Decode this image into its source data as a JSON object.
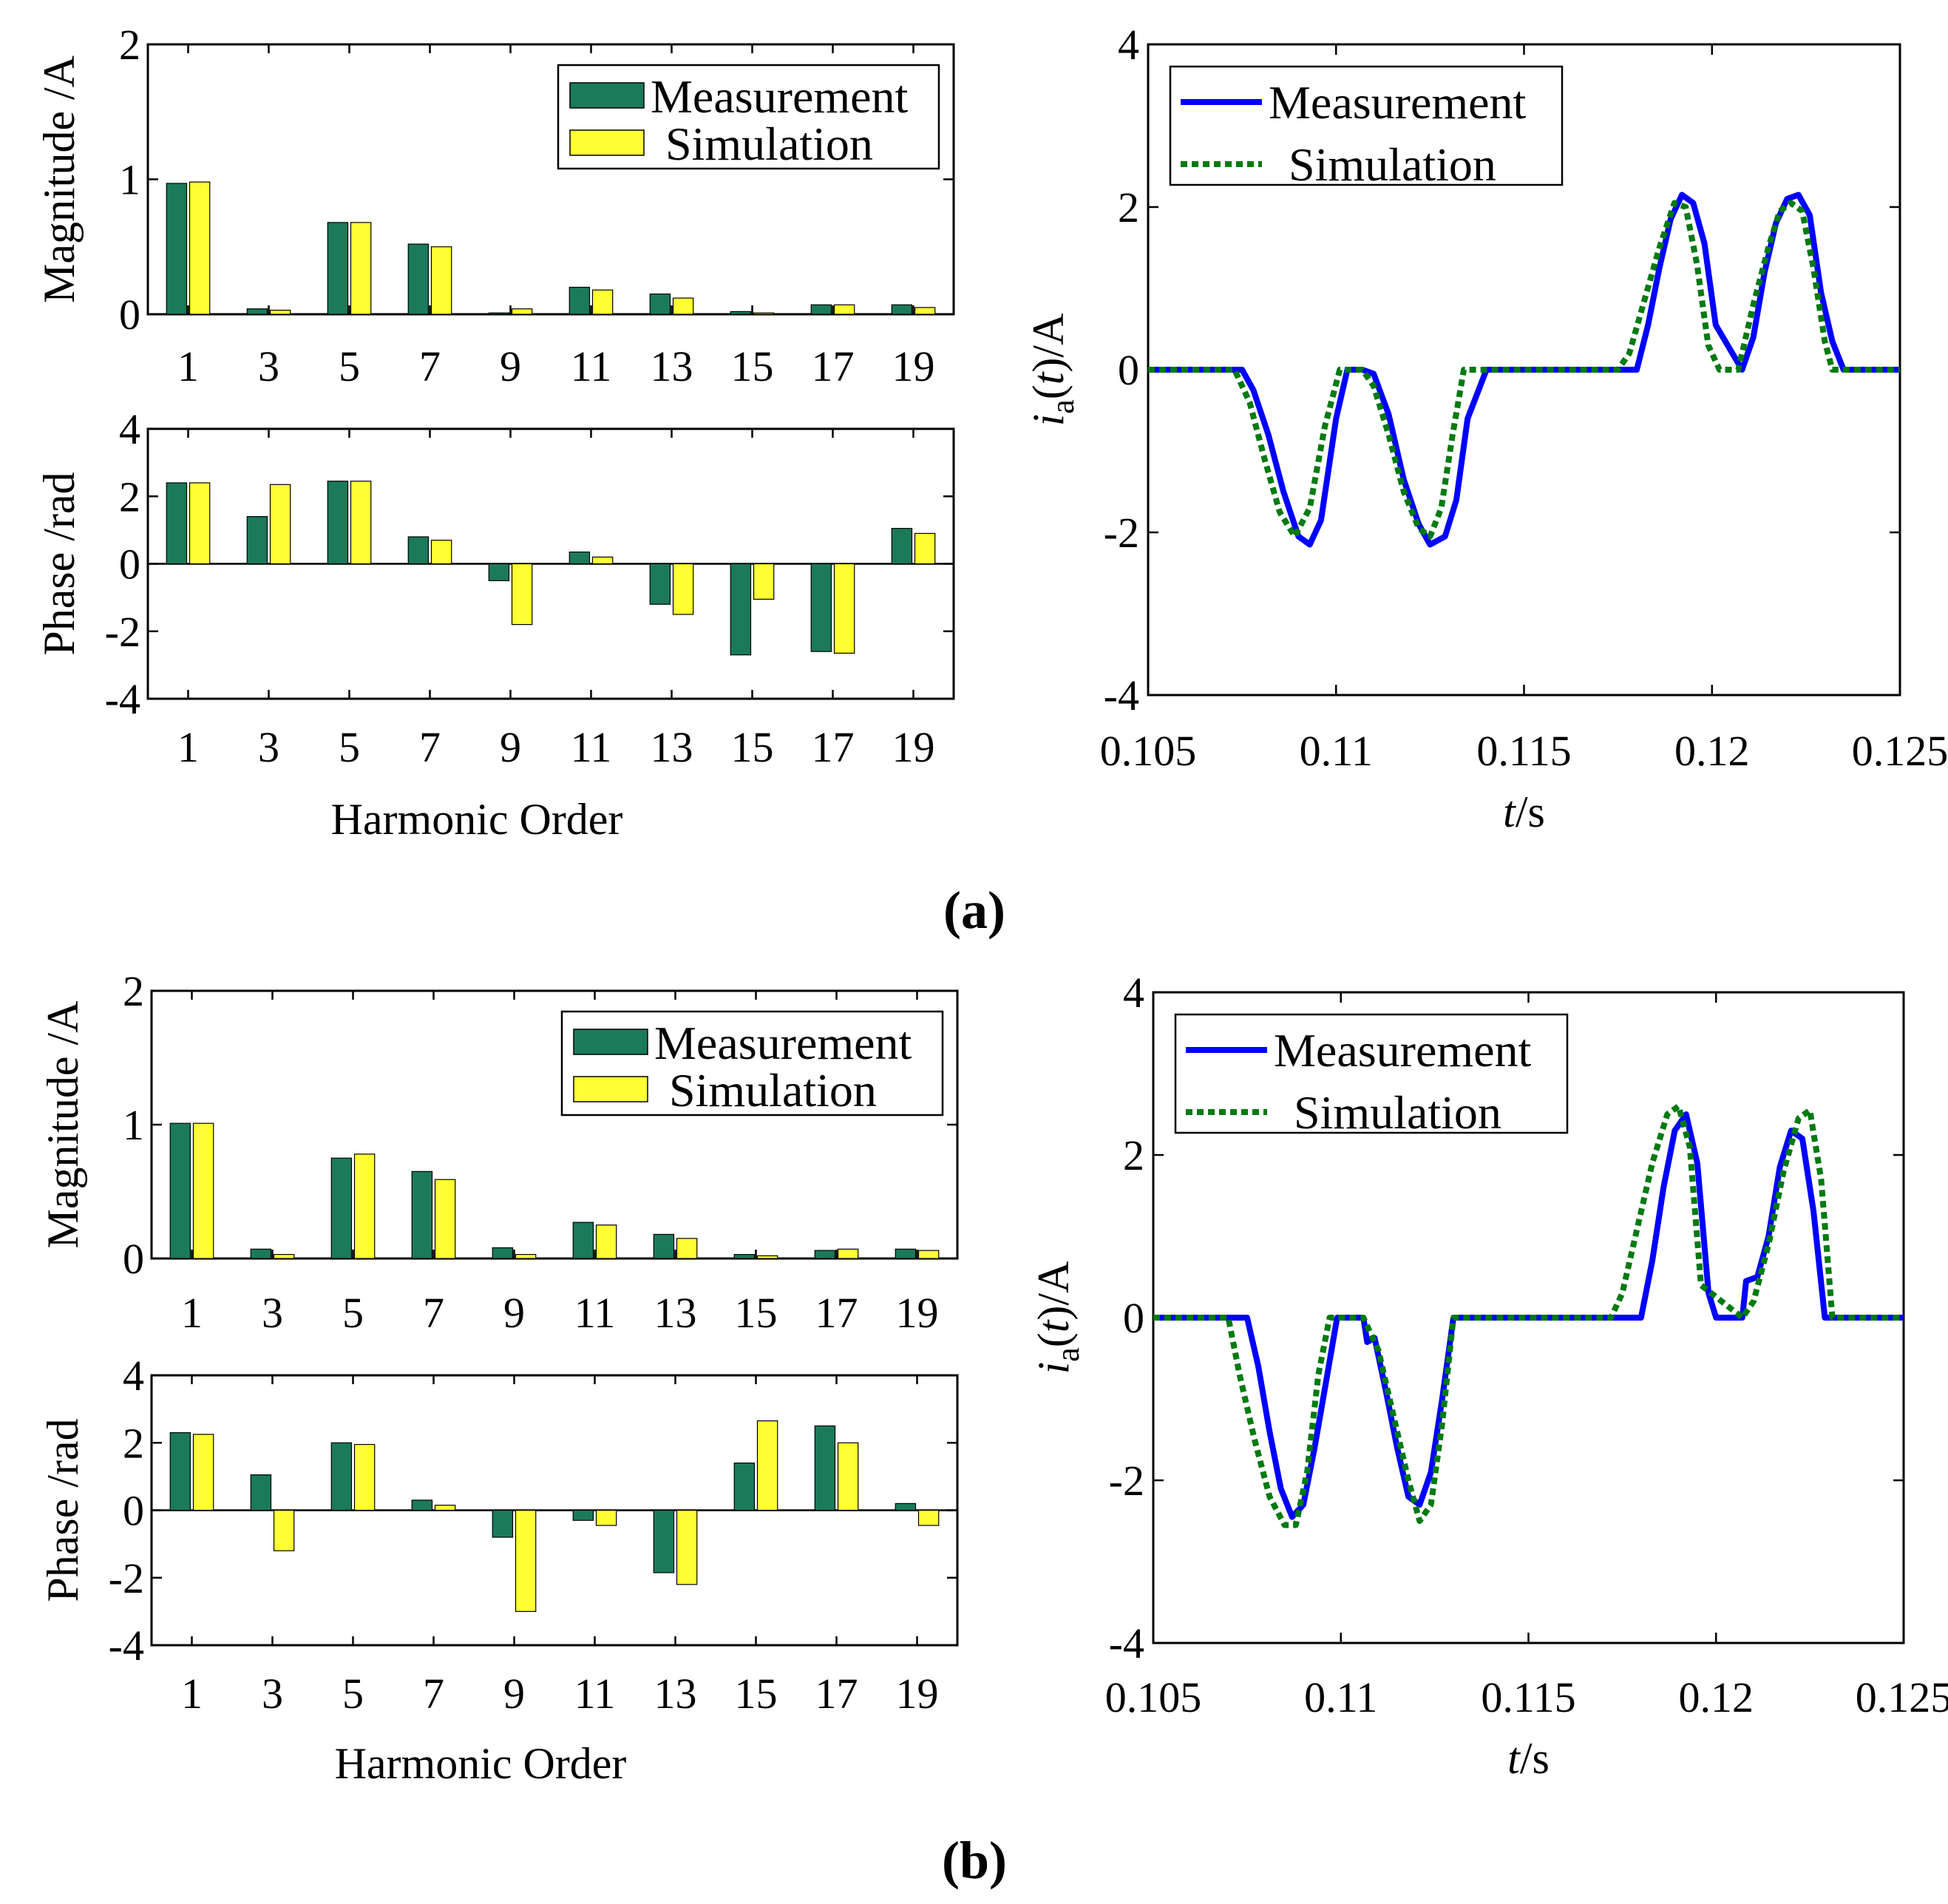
{
  "chart_data": [
    {
      "id": "a",
      "panel_label": "a",
      "harmonics": {
        "type": "bar",
        "categories": [
          "1",
          "3",
          "5",
          "7",
          "9",
          "11",
          "13",
          "15",
          "17",
          "19"
        ],
        "xlabel": "Harmonic Order",
        "magnitude": {
          "ylabel": "Magnitude /A",
          "ylim": [
            0,
            2
          ],
          "yticks": [
            "0",
            "1",
            "2"
          ],
          "series": [
            {
              "name": "Measurement",
              "color": "#1b7a5a",
              "values": [
                0.97,
                0.04,
                0.68,
                0.52,
                0.01,
                0.2,
                0.15,
                0.02,
                0.07,
                0.07
              ]
            },
            {
              "name": "Simulation",
              "color": "#ffff33",
              "values": [
                0.98,
                0.03,
                0.68,
                0.5,
                0.04,
                0.18,
                0.12,
                0.01,
                0.07,
                0.05
              ]
            }
          ]
        },
        "phase": {
          "ylabel": "Phase /rad",
          "ylim": [
            -4,
            4
          ],
          "yticks": [
            "-4",
            "-2",
            "0",
            "2",
            "4"
          ],
          "series": [
            {
              "name": "Measurement",
              "color": "#1b7a5a",
              "values": [
                2.4,
                1.4,
                2.45,
                0.8,
                -0.5,
                0.35,
                -1.2,
                -2.7,
                -2.6,
                1.05
              ]
            },
            {
              "name": "Simulation",
              "color": "#ffff33",
              "values": [
                2.4,
                2.35,
                2.45,
                0.7,
                -1.8,
                0.2,
                -1.5,
                -1.05,
                -2.65,
                0.9
              ]
            }
          ]
        }
      },
      "waveform": {
        "type": "line",
        "xlabel_italic": "t",
        "xlabel_unit": "/s",
        "ylabel_italic_i": "i",
        "ylabel_sub": "a",
        "ylabel_italic_t": "t",
        "ylabel_unit": "/A",
        "xlim": [
          0.105,
          0.125
        ],
        "ylim": [
          -4,
          4
        ],
        "xticks": [
          "0.105",
          "0.11",
          "0.115",
          "0.12",
          "0.125"
        ],
        "yticks": [
          "-4",
          "-2",
          "0",
          "2",
          "4"
        ],
        "series": [
          {
            "name": "Measurement",
            "color": "#0000ff",
            "style": "solid",
            "x": [
              0.105,
              0.1075,
              0.1078,
              0.1082,
              0.1086,
              0.109,
              0.1093,
              0.1096,
              0.11,
              0.1103,
              0.1107,
              0.111,
              0.1114,
              0.1118,
              0.1122,
              0.1125,
              0.1129,
              0.1132,
              0.1135,
              0.114,
              0.118,
              0.1183,
              0.1186,
              0.1189,
              0.1192,
              0.1195,
              0.1198,
              0.1201,
              0.1208,
              0.1211,
              0.1214,
              0.1217,
              0.122,
              0.1223,
              0.1226,
              0.1229,
              0.1232,
              0.1235,
              0.125
            ],
            "y": [
              0,
              0,
              -0.25,
              -0.8,
              -1.5,
              -2.05,
              -2.15,
              -1.85,
              -0.6,
              0,
              0,
              -0.05,
              -0.55,
              -1.35,
              -1.9,
              -2.15,
              -2.05,
              -1.6,
              -0.6,
              0,
              0,
              0.55,
              1.25,
              1.85,
              2.15,
              2.05,
              1.55,
              0.55,
              0,
              0.4,
              1.2,
              1.8,
              2.1,
              2.15,
              1.9,
              0.95,
              0.35,
              0,
              0
            ]
          },
          {
            "name": "Simulation",
            "color": "#007a10",
            "style": "dotted",
            "x": [
              0.105,
              0.1073,
              0.1077,
              0.1081,
              0.1085,
              0.1089,
              0.1093,
              0.1097,
              0.1101,
              0.1107,
              0.111,
              0.1114,
              0.1118,
              0.1122,
              0.1125,
              0.1128,
              0.1131,
              0.1134,
              0.1138,
              0.1175,
              0.1178,
              0.1182,
              0.1186,
              0.119,
              0.1193,
              0.1196,
              0.1199,
              0.1202,
              0.1207,
              0.1211,
              0.1215,
              0.1218,
              0.1221,
              0.1224,
              0.1227,
              0.123,
              0.1232,
              0.125
            ],
            "y": [
              0,
              0,
              -0.4,
              -1.1,
              -1.75,
              -2.05,
              -1.7,
              -0.7,
              0,
              0,
              -0.2,
              -0.8,
              -1.5,
              -1.95,
              -2.05,
              -1.7,
              -0.8,
              0,
              0,
              0,
              0.2,
              0.85,
              1.5,
              2.05,
              2.0,
              1.3,
              0.3,
              0,
              0,
              0.8,
              1.5,
              1.95,
              2.05,
              1.95,
              1.25,
              0.35,
              0,
              0
            ]
          }
        ],
        "legend_position": "top-left"
      }
    },
    {
      "id": "b",
      "panel_label": "b",
      "harmonics": {
        "type": "bar",
        "categories": [
          "1",
          "3",
          "5",
          "7",
          "9",
          "11",
          "13",
          "15",
          "17",
          "19"
        ],
        "xlabel": "Harmonic Order",
        "magnitude": {
          "ylabel": "Magnitude /A",
          "ylim": [
            0,
            2
          ],
          "yticks": [
            "0",
            "1",
            "2"
          ],
          "series": [
            {
              "name": "Measurement",
              "color": "#1b7a5a",
              "values": [
                1.01,
                0.07,
                0.75,
                0.65,
                0.08,
                0.27,
                0.18,
                0.03,
                0.06,
                0.07
              ]
            },
            {
              "name": "Simulation",
              "color": "#ffff33",
              "values": [
                1.01,
                0.03,
                0.78,
                0.59,
                0.03,
                0.25,
                0.15,
                0.02,
                0.07,
                0.06
              ]
            }
          ]
        },
        "phase": {
          "ylabel": "Phase /rad",
          "ylim": [
            -4,
            4
          ],
          "yticks": [
            "-4",
            "-2",
            "0",
            "2",
            "4"
          ],
          "series": [
            {
              "name": "Measurement",
              "color": "#1b7a5a",
              "values": [
                2.3,
                1.05,
                2.0,
                0.3,
                -0.8,
                -0.3,
                -1.85,
                1.4,
                2.5,
                0.2
              ]
            },
            {
              "name": "Simulation",
              "color": "#ffff33",
              "values": [
                2.25,
                -1.2,
                1.95,
                0.15,
                -3.0,
                -0.45,
                -2.2,
                2.65,
                2.0,
                -0.45
              ]
            }
          ]
        }
      },
      "waveform": {
        "type": "line",
        "xlabel_italic": "t",
        "xlabel_unit": "/s",
        "ylabel_italic_i": "i",
        "ylabel_sub": "a",
        "ylabel_italic_t": "t",
        "ylabel_unit": "/A",
        "xlim": [
          0.105,
          0.125
        ],
        "ylim": [
          -4,
          4
        ],
        "xticks": [
          "0.105",
          "0.11",
          "0.115",
          "0.12",
          "0.125"
        ],
        "yticks": [
          "-4",
          "-2",
          "0",
          "2",
          "4"
        ],
        "series": [
          {
            "name": "Measurement",
            "color": "#0000ff",
            "style": "solid",
            "x": [
              0.105,
              0.1075,
              0.1078,
              0.1081,
              0.1084,
              0.1087,
              0.109,
              0.1093,
              0.1096,
              0.1099,
              0.1106,
              0.1107,
              0.1109,
              0.1112,
              0.1115,
              0.1118,
              0.1121,
              0.1124,
              0.1127,
              0.113,
              0.1145,
              0.118,
              0.1183,
              0.1186,
              0.1189,
              0.1192,
              0.1195,
              0.1198,
              0.12,
              0.1207,
              0.1208,
              0.1211,
              0.1214,
              0.1217,
              0.122,
              0.1223,
              0.1226,
              0.1229,
              0.125
            ],
            "y": [
              0,
              0,
              -0.6,
              -1.4,
              -2.1,
              -2.45,
              -2.3,
              -1.6,
              -0.8,
              0,
              0,
              -0.3,
              -0.25,
              -0.9,
              -1.6,
              -2.2,
              -2.3,
              -1.9,
              -1.0,
              0,
              0,
              0,
              0.7,
              1.6,
              2.3,
              2.5,
              1.9,
              0.3,
              0,
              0,
              0.45,
              0.5,
              1.0,
              1.85,
              2.3,
              2.2,
              1.3,
              0,
              0
            ]
          },
          {
            "name": "Simulation",
            "color": "#007a10",
            "style": "dotted",
            "x": [
              0.105,
              0.107,
              0.1073,
              0.1077,
              0.1081,
              0.1085,
              0.1088,
              0.1091,
              0.1094,
              0.1097,
              0.11,
              0.1103,
              0.1106,
              0.111,
              0.1114,
              0.1118,
              0.1121,
              0.1124,
              0.1127,
              0.113,
              0.1172,
              0.1175,
              0.1179,
              0.1183,
              0.1187,
              0.119,
              0.1193,
              0.1196,
              0.1207,
              0.121,
              0.1214,
              0.1218,
              0.1222,
              0.1225,
              0.1228,
              0.1231,
              0.125
            ],
            "y": [
              0,
              0,
              -0.7,
              -1.5,
              -2.2,
              -2.55,
              -2.55,
              -1.9,
              -0.7,
              0,
              0,
              0,
              0,
              -0.4,
              -1.2,
              -2.0,
              -2.5,
              -2.3,
              -1.3,
              0,
              0,
              0.3,
              1.1,
              1.9,
              2.5,
              2.6,
              2.1,
              0.4,
              0,
              0.2,
              0.9,
              1.8,
              2.45,
              2.55,
              1.7,
              0,
              0
            ]
          }
        ],
        "legend_position": "top-left"
      }
    }
  ]
}
